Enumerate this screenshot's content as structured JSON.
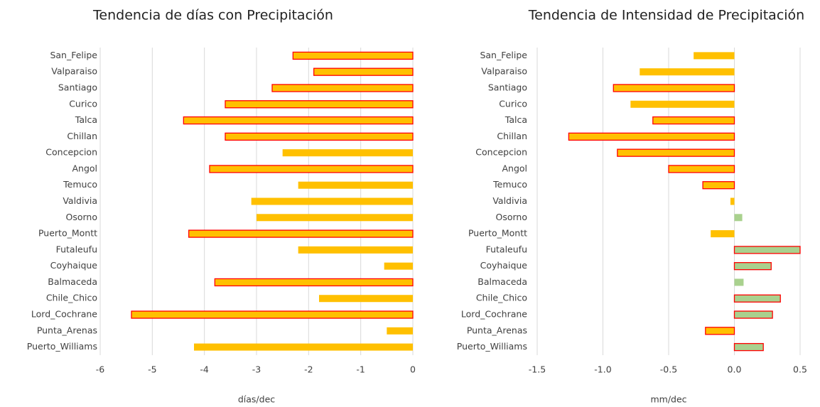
{
  "chart_data": [
    {
      "type": "bar",
      "orientation": "horizontal",
      "title": "Tendencia de días con Precipitación",
      "xlabel": "días/dec",
      "categories": [
        "San_Felipe",
        "Valparaiso",
        "Santiago",
        "Curico",
        "Talca",
        "Chillan",
        "Concepcion",
        "Angol",
        "Temuco",
        "Valdivia",
        "Osorno",
        "Puerto_Montt",
        "Futaleufu",
        "Coyhaique",
        "Balmaceda",
        "Chile_Chico",
        "Lord_Cochrane",
        "Punta_Arenas",
        "Puerto_Williams"
      ],
      "values": [
        -2.3,
        -1.9,
        -2.7,
        -3.6,
        -4.4,
        -3.6,
        -2.5,
        -3.9,
        -2.2,
        -3.1,
        -3.0,
        -4.3,
        -2.2,
        -0.55,
        -3.8,
        -1.8,
        -5.4,
        -0.5,
        -4.2
      ],
      "colors": [
        "#ffc000",
        "#ffc000",
        "#ffc000",
        "#ffc000",
        "#ffc000",
        "#ffc000",
        "#ffc000",
        "#ffc000",
        "#ffc000",
        "#ffc000",
        "#ffc000",
        "#ffc000",
        "#ffc000",
        "#ffc000",
        "#ffc000",
        "#ffc000",
        "#ffc000",
        "#ffc000",
        "#ffc000"
      ],
      "edgecolors": [
        "#ff0000",
        "#ff0000",
        "#ff0000",
        "#ff0000",
        "#ff0000",
        "#ff0000",
        null,
        "#ff0000",
        null,
        null,
        null,
        "#ff0000",
        null,
        null,
        "#ff0000",
        null,
        "#ff0000",
        null,
        null
      ],
      "xlim": [
        -6,
        0
      ],
      "xticks": [
        -6,
        -5,
        -4,
        -3,
        -2,
        -1,
        0
      ],
      "grid": true
    },
    {
      "type": "bar",
      "orientation": "horizontal",
      "title": "Tendencia de Intensidad de Precipitación",
      "xlabel": "mm/dec",
      "categories": [
        "San_Felipe",
        "Valparaiso",
        "Santiago",
        "Curico",
        "Talca",
        "Chillan",
        "Concepcion",
        "Angol",
        "Temuco",
        "Valdivia",
        "Osorno",
        "Puerto_Montt",
        "Futaleufu",
        "Coyhaique",
        "Balmaceda",
        "Chile_Chico",
        "Lord_Cochrane",
        "Punta_Arenas",
        "Puerto_Williams"
      ],
      "values": [
        -0.31,
        -0.72,
        -0.92,
        -0.79,
        -0.62,
        -1.26,
        -0.89,
        -0.5,
        -0.24,
        -0.03,
        0.06,
        -0.18,
        0.5,
        0.28,
        0.07,
        0.35,
        0.29,
        -0.22,
        0.22
      ],
      "colors": [
        "#ffc000",
        "#ffc000",
        "#ffc000",
        "#ffc000",
        "#ffc000",
        "#ffc000",
        "#ffc000",
        "#ffc000",
        "#ffc000",
        "#ffc000",
        "#a9d18e",
        "#ffc000",
        "#a9d18e",
        "#a9d18e",
        "#a9d18e",
        "#a9d18e",
        "#a9d18e",
        "#ffc000",
        "#a9d18e"
      ],
      "edgecolors": [
        null,
        null,
        "#ff0000",
        null,
        "#ff0000",
        "#ff0000",
        "#ff0000",
        "#ff0000",
        "#ff0000",
        null,
        null,
        null,
        "#ff0000",
        "#ff0000",
        null,
        "#ff0000",
        "#ff0000",
        "#ff0000",
        "#ff0000"
      ],
      "xlim": [
        -1.5,
        0.5
      ],
      "xticks": [
        -1.5,
        {
          "value": -1.0,
          "label": "-1.0"
        },
        -0.5,
        {
          "value": 0.0,
          "label": "0.0"
        },
        0.5
      ],
      "grid": true
    }
  ]
}
